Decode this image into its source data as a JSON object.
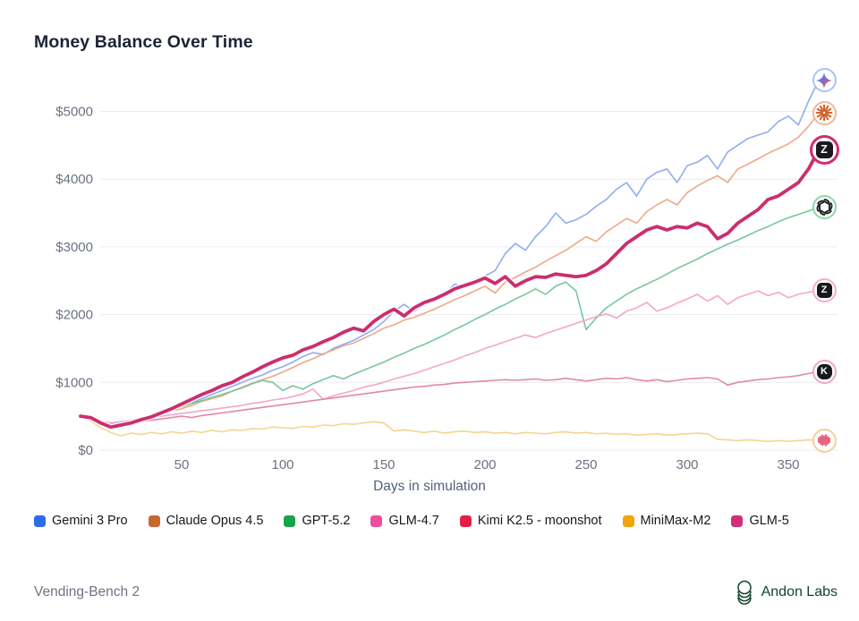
{
  "footer": {
    "left": "Vending-Bench 2",
    "brand": "Andon Labs"
  },
  "chart_data": {
    "type": "line",
    "title": "Money Balance Over Time",
    "xlabel": "Days in simulation",
    "ylabel": "",
    "xlim": [
      0,
      368
    ],
    "ylim": [
      0,
      5600
    ],
    "grid": "horizontal",
    "legend_position": "bottom",
    "xticks": [
      50,
      100,
      150,
      200,
      250,
      300,
      350
    ],
    "yticks": [
      0,
      1000,
      2000,
      3000,
      4000,
      5000
    ],
    "ytick_labels": [
      "$0",
      "$1000",
      "$2000",
      "$3000",
      "$4000",
      "$5000"
    ],
    "x": [
      0,
      5,
      10,
      15,
      20,
      25,
      30,
      35,
      40,
      45,
      50,
      55,
      60,
      65,
      70,
      75,
      80,
      85,
      90,
      95,
      100,
      105,
      110,
      115,
      120,
      125,
      130,
      135,
      140,
      145,
      150,
      155,
      160,
      165,
      170,
      175,
      180,
      185,
      190,
      195,
      200,
      205,
      210,
      215,
      220,
      225,
      230,
      235,
      240,
      245,
      250,
      255,
      260,
      265,
      270,
      275,
      280,
      285,
      290,
      295,
      300,
      305,
      310,
      315,
      320,
      325,
      330,
      335,
      340,
      345,
      350,
      355,
      360,
      365
    ],
    "series": [
      {
        "name": "Gemini 3 Pro",
        "slug": "gemini-3-pro",
        "icon": "gemini-star",
        "color": "#2f6be6",
        "line_color": "#8fadf0",
        "ring": "#a9c3f5",
        "highlight": false,
        "end_value": 5460,
        "values": [
          500,
          470,
          390,
          340,
          360,
          400,
          430,
          480,
          540,
          590,
          640,
          700,
          760,
          820,
          880,
          940,
          1000,
          1060,
          1110,
          1180,
          1230,
          1300,
          1380,
          1440,
          1410,
          1500,
          1560,
          1620,
          1700,
          1780,
          1900,
          2050,
          2150,
          2050,
          2150,
          2250,
          2300,
          2450,
          2400,
          2500,
          2570,
          2650,
          2900,
          3050,
          2950,
          3150,
          3300,
          3500,
          3350,
          3400,
          3480,
          3600,
          3700,
          3850,
          3950,
          3750,
          4000,
          4100,
          4150,
          3950,
          4200,
          4250,
          4350,
          4150,
          4400,
          4500,
          4600,
          4650,
          4700,
          4850,
          4930,
          4800,
          5150,
          5460
        ]
      },
      {
        "name": "Claude Opus 4.5",
        "slug": "claude-opus-4-5",
        "icon": "claude-starburst",
        "color": "#c9662e",
        "line_color": "#eda986",
        "ring": "#f0b894",
        "highlight": false,
        "end_value": 4975,
        "values": [
          500,
          460,
          380,
          350,
          380,
          410,
          450,
          500,
          550,
          580,
          610,
          660,
          720,
          760,
          800,
          870,
          930,
          990,
          1040,
          1090,
          1150,
          1220,
          1290,
          1350,
          1420,
          1480,
          1540,
          1580,
          1650,
          1720,
          1800,
          1850,
          1920,
          1960,
          2020,
          2080,
          2150,
          2220,
          2280,
          2350,
          2420,
          2320,
          2480,
          2550,
          2630,
          2700,
          2790,
          2870,
          2950,
          3050,
          3150,
          3080,
          3220,
          3320,
          3420,
          3350,
          3520,
          3620,
          3700,
          3620,
          3800,
          3900,
          3980,
          4050,
          3950,
          4150,
          4220,
          4300,
          4380,
          4450,
          4520,
          4620,
          4780,
          4975
        ]
      },
      {
        "name": "GPT-5.2",
        "slug": "gpt-5-2",
        "icon": "openai-knot",
        "color": "#17a34a",
        "line_color": "#77c79b",
        "ring": "#90d4aa",
        "highlight": false,
        "end_value": 3580,
        "values": [
          500,
          480,
          420,
          390,
          410,
          440,
          470,
          510,
          560,
          600,
          640,
          690,
          730,
          780,
          820,
          870,
          920,
          980,
          1030,
          1000,
          880,
          950,
          900,
          980,
          1040,
          1100,
          1050,
          1120,
          1180,
          1240,
          1300,
          1370,
          1430,
          1500,
          1560,
          1630,
          1700,
          1780,
          1850,
          1930,
          2000,
          2080,
          2150,
          2230,
          2300,
          2380,
          2300,
          2420,
          2480,
          2350,
          1780,
          1950,
          2100,
          2200,
          2300,
          2380,
          2450,
          2520,
          2600,
          2680,
          2750,
          2820,
          2900,
          2970,
          3040,
          3100,
          3170,
          3240,
          3300,
          3370,
          3430,
          3480,
          3530,
          3580
        ]
      },
      {
        "name": "GLM-4.7",
        "slug": "glm-4-7",
        "icon": "z-badge",
        "badge": "Z",
        "color": "#ee4d9b",
        "line_color": "#f4a6c8",
        "ring": "#f5adca",
        "highlight": false,
        "end_value": 2360,
        "values": [
          500,
          480,
          430,
          400,
          420,
          440,
          460,
          480,
          500,
          520,
          540,
          560,
          580,
          600,
          620,
          640,
          660,
          690,
          710,
          740,
          760,
          790,
          830,
          900,
          750,
          800,
          840,
          880,
          930,
          960,
          1000,
          1050,
          1090,
          1130,
          1180,
          1230,
          1280,
          1330,
          1390,
          1440,
          1500,
          1550,
          1600,
          1650,
          1700,
          1660,
          1720,
          1770,
          1820,
          1870,
          1920,
          1970,
          2010,
          1950,
          2050,
          2100,
          2180,
          2050,
          2100,
          2170,
          2230,
          2300,
          2200,
          2280,
          2150,
          2250,
          2300,
          2350,
          2280,
          2330,
          2250,
          2300,
          2330,
          2360
        ]
      },
      {
        "name": "Kimi K2.5 - moonshot",
        "slug": "kimi-k2-5-moonshot",
        "icon": "k-badge",
        "badge": "K",
        "color": "#e11d48",
        "line_color": "#e18aa2",
        "ring": "#f0a9bd",
        "highlight": false,
        "end_value": 1160,
        "values": [
          500,
          470,
          400,
          360,
          380,
          400,
          420,
          440,
          460,
          480,
          500,
          480,
          510,
          530,
          550,
          570,
          590,
          610,
          630,
          650,
          670,
          690,
          710,
          730,
          750,
          770,
          790,
          810,
          830,
          850,
          870,
          890,
          910,
          930,
          940,
          960,
          970,
          990,
          1000,
          1010,
          1020,
          1030,
          1040,
          1030,
          1040,
          1050,
          1030,
          1040,
          1060,
          1040,
          1020,
          1040,
          1060,
          1050,
          1070,
          1040,
          1020,
          1040,
          1010,
          1030,
          1050,
          1060,
          1070,
          1050,
          960,
          1000,
          1020,
          1040,
          1050,
          1070,
          1080,
          1100,
          1130,
          1160
        ]
      },
      {
        "name": "MiniMax-M2",
        "slug": "minimax-m2",
        "icon": "minimax-wave",
        "color": "#f5a30b",
        "line_color": "#f7d491",
        "ring": "#f4cf9d",
        "highlight": false,
        "end_value": 140,
        "values": [
          500,
          430,
          330,
          260,
          210,
          250,
          230,
          260,
          240,
          270,
          250,
          280,
          260,
          290,
          270,
          300,
          290,
          320,
          310,
          340,
          330,
          320,
          350,
          340,
          370,
          360,
          390,
          380,
          400,
          420,
          400,
          280,
          300,
          280,
          260,
          280,
          250,
          270,
          280,
          260,
          270,
          250,
          260,
          240,
          260,
          250,
          240,
          260,
          270,
          250,
          260,
          240,
          250,
          230,
          240,
          220,
          230,
          240,
          220,
          230,
          240,
          250,
          240,
          160,
          150,
          140,
          150,
          140,
          130,
          140,
          130,
          140,
          150,
          140
        ]
      },
      {
        "name": "GLM-5",
        "slug": "glm-5",
        "icon": "z-badge",
        "badge": "Z",
        "color": "#d42e79",
        "line_color": "#cb2e6e",
        "ring": "#cf2d72",
        "highlight": true,
        "end_value": 4430,
        "values": [
          500,
          480,
          400,
          340,
          370,
          400,
          450,
          490,
          550,
          610,
          680,
          750,
          820,
          880,
          950,
          1000,
          1080,
          1150,
          1230,
          1300,
          1360,
          1400,
          1480,
          1530,
          1600,
          1660,
          1740,
          1800,
          1760,
          1900,
          2000,
          2080,
          1980,
          2100,
          2180,
          2230,
          2300,
          2380,
          2430,
          2480,
          2540,
          2460,
          2560,
          2420,
          2500,
          2560,
          2550,
          2600,
          2580,
          2560,
          2580,
          2650,
          2750,
          2900,
          3050,
          3150,
          3250,
          3300,
          3250,
          3300,
          3280,
          3350,
          3300,
          3120,
          3200,
          3350,
          3450,
          3550,
          3700,
          3750,
          3850,
          3950,
          4150,
          4430
        ]
      }
    ]
  }
}
